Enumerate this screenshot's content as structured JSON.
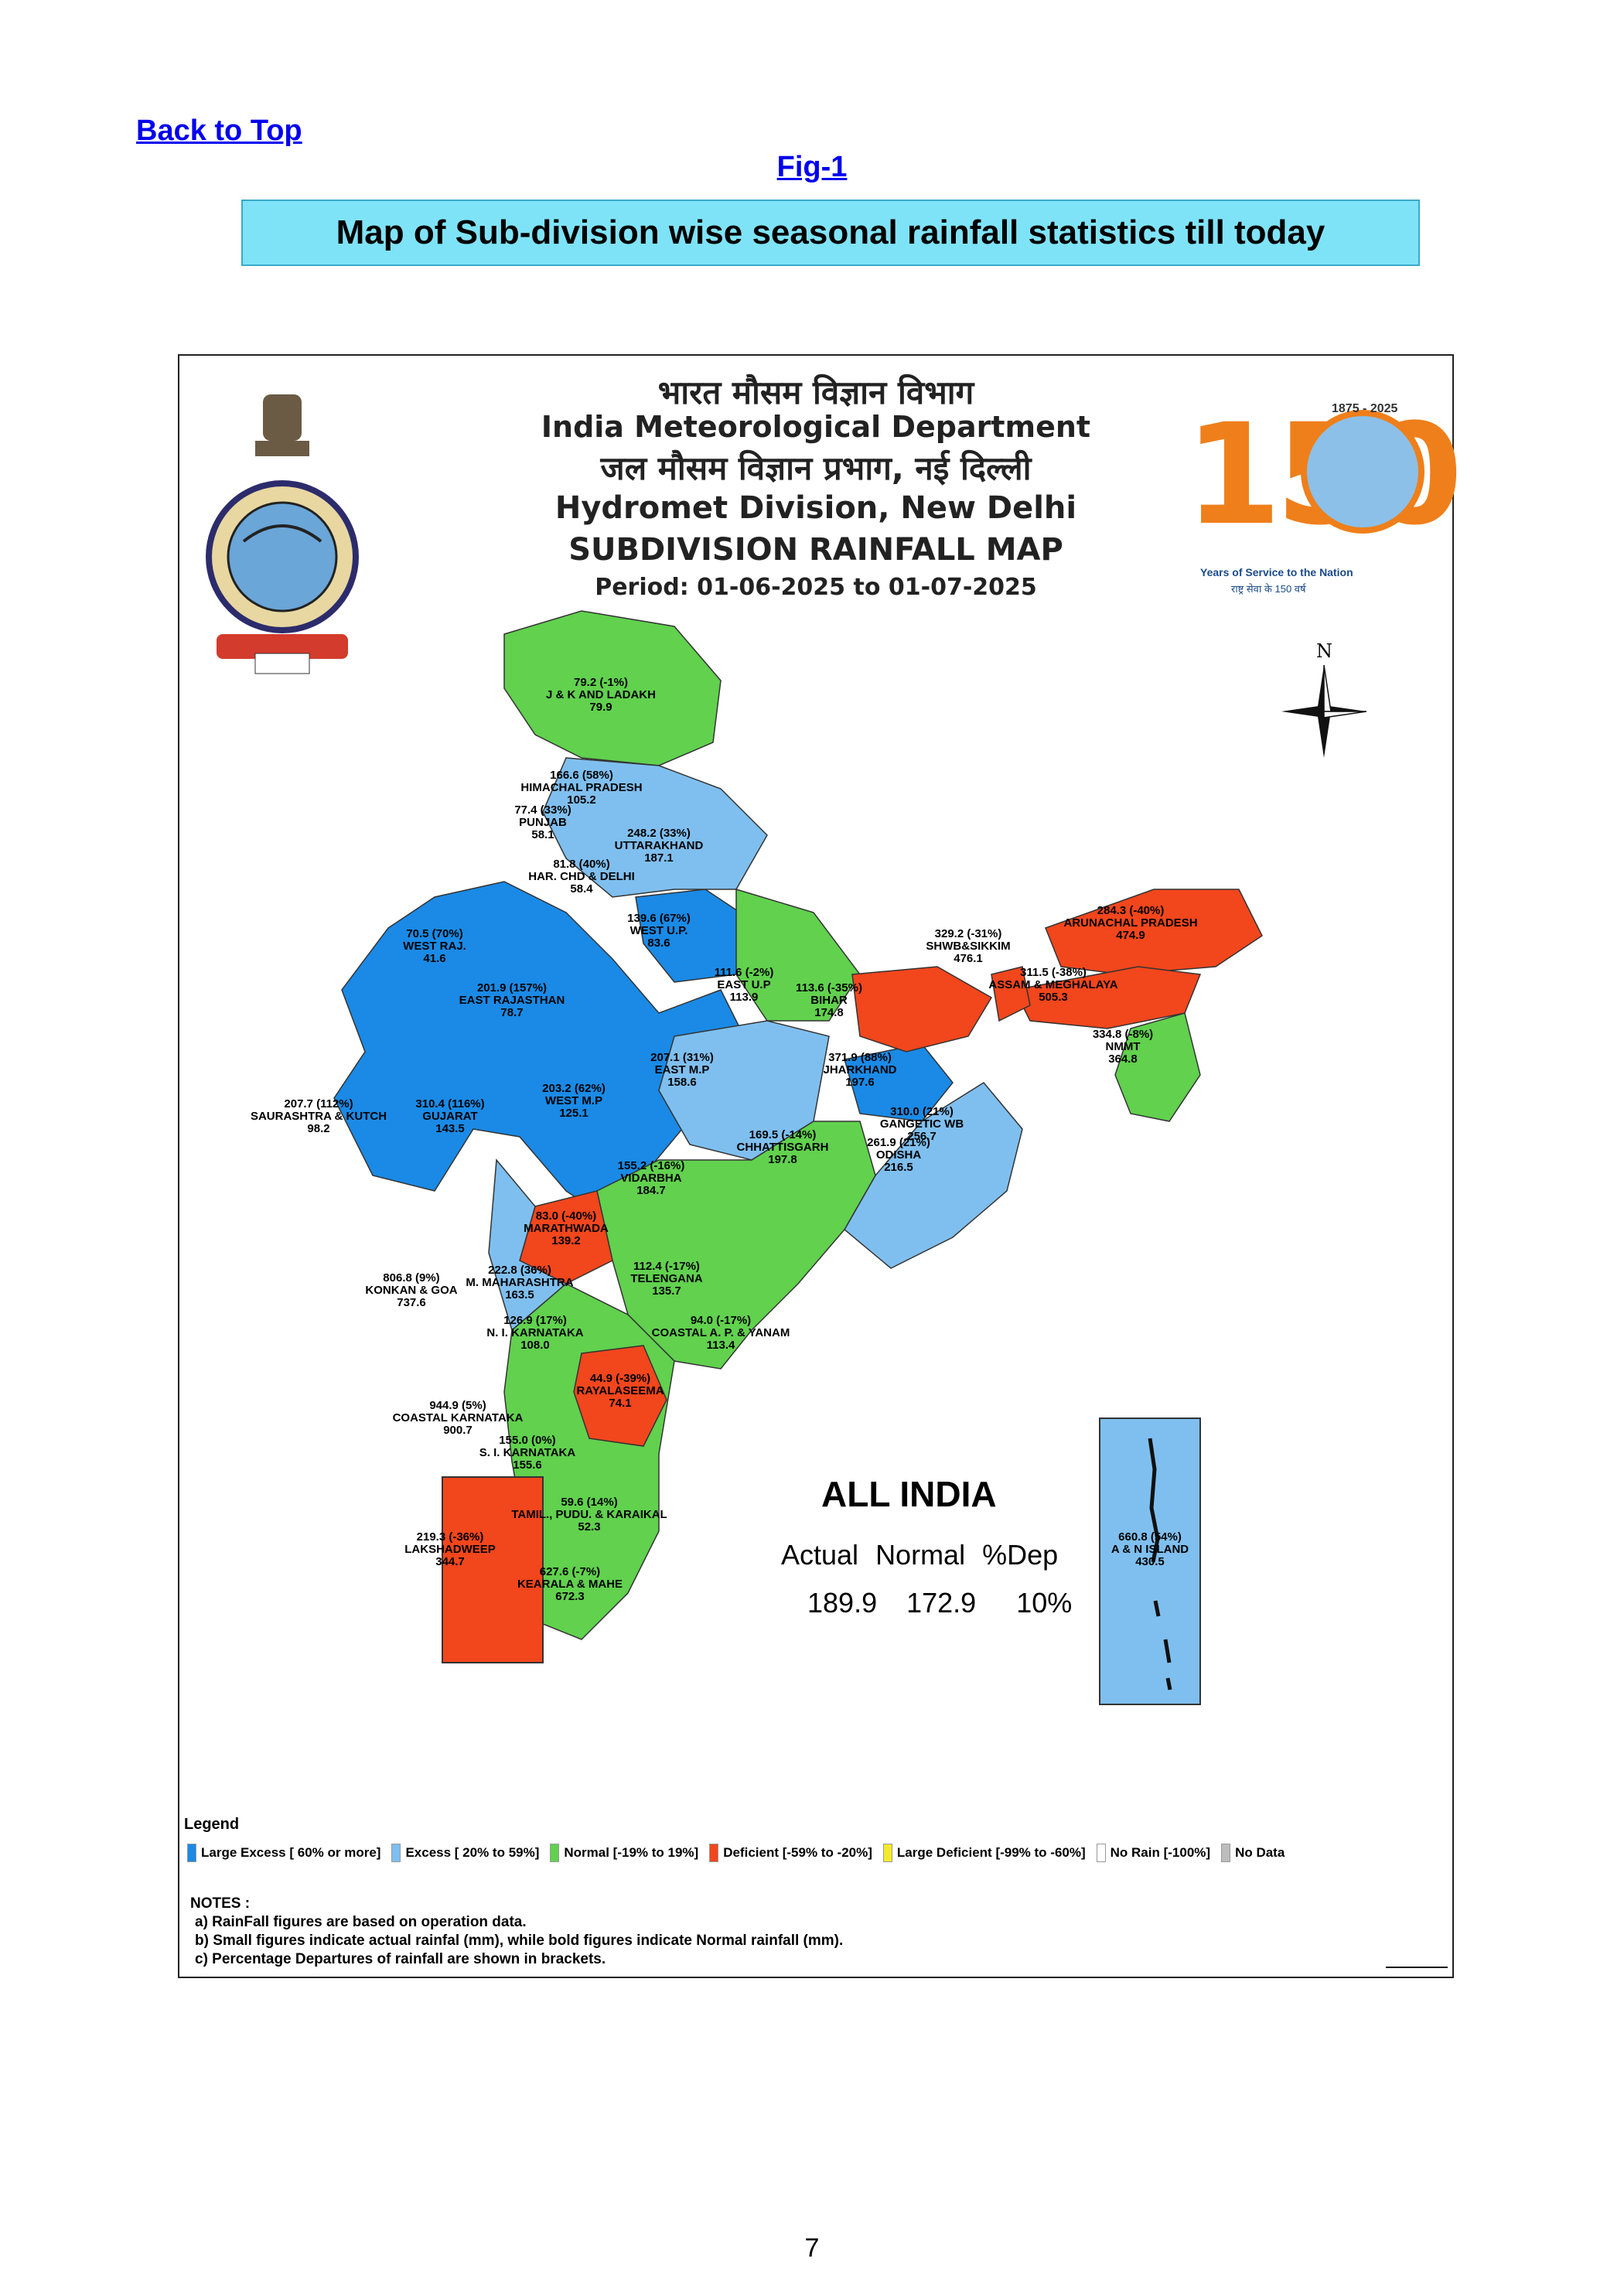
{
  "nav": {
    "back_to_top": "Back to Top",
    "fig_link": "Fig-1"
  },
  "page_title": "Map of Sub-division wise seasonal rainfall statistics till today",
  "header": {
    "line_hi_1": "भारत मौसम विज्ञान विभाग",
    "line_en_1": "India Meteorological Department",
    "line_hi_2": "जल मौसम विज्ञान प्रभाग, नई दिल्ली",
    "line_en_2": "Hydromet Division, New Delhi",
    "map_title": "SUBDIVISION RAINFALL MAP",
    "period": "Period: 01-06-2025 to 01-07-2025"
  },
  "anniversary_logo": {
    "number": "150",
    "years": "1875 - 2025",
    "caption": "Years of Service to the Nation",
    "caption_hi": "राष्ट्र सेवा के 150 वर्ष"
  },
  "north_label": "N",
  "colors": {
    "large_excess": "#1a8ae6",
    "excess": "#7fbfef",
    "normal": "#61d14e",
    "deficient": "#f2461c",
    "large_deficient": "#f5ea2a",
    "no_rain": "#ffffff",
    "no_data": "#bdbdbd",
    "title_box": "#7fe3f7",
    "link": "#0000ee"
  },
  "subdivisions": [
    {
      "name": "J & K AND LADAKH",
      "actual": "79.2",
      "dep": "(-1%)",
      "normal": "79.9",
      "category": "normal"
    },
    {
      "name": "HIMACHAL PRADESH",
      "actual": "166.6",
      "dep": "(58%)",
      "normal": "105.2",
      "category": "excess"
    },
    {
      "name": "PUNJAB",
      "actual": "77.4",
      "dep": "(33%)",
      "normal": "58.1",
      "category": "excess"
    },
    {
      "name": "UTTARAKHAND",
      "actual": "248.2",
      "dep": "(33%)",
      "normal": "187.1",
      "category": "excess"
    },
    {
      "name": "HAR. CHD & DELHI",
      "actual": "81.8",
      "dep": "(40%)",
      "normal": "58.4",
      "category": "excess"
    },
    {
      "name": "WEST U.P.",
      "actual": "139.6",
      "dep": "(67%)",
      "normal": "83.6",
      "category": "large_excess"
    },
    {
      "name": "WEST RAJ.",
      "actual": "70.5",
      "dep": "(70%)",
      "normal": "41.6",
      "category": "large_excess"
    },
    {
      "name": "EAST RAJASTHAN",
      "actual": "201.9",
      "dep": "(157%)",
      "normal": "78.7",
      "category": "large_excess"
    },
    {
      "name": "EAST U.P",
      "actual": "111.6",
      "dep": "(-2%)",
      "normal": "113.9",
      "category": "normal"
    },
    {
      "name": "BIHAR",
      "actual": "113.6",
      "dep": "(-35%)",
      "normal": "174.8",
      "category": "deficient"
    },
    {
      "name": "SHWB&SIKKIM",
      "actual": "329.2",
      "dep": "(-31%)",
      "normal": "476.1",
      "category": "deficient"
    },
    {
      "name": "ARUNACHAL PRADESH",
      "actual": "284.3",
      "dep": "(-40%)",
      "normal": "474.9",
      "category": "deficient"
    },
    {
      "name": "ASSAM & MEGHALAYA",
      "actual": "311.5",
      "dep": "(-38%)",
      "normal": "505.3",
      "category": "deficient"
    },
    {
      "name": "NMMT",
      "actual": "334.8",
      "dep": "(-8%)",
      "normal": "364.8",
      "category": "normal"
    },
    {
      "name": "EAST M.P",
      "actual": "207.1",
      "dep": "(31%)",
      "normal": "158.6",
      "category": "excess"
    },
    {
      "name": "JHARKHAND",
      "actual": "371.9",
      "dep": "(88%)",
      "normal": "197.6",
      "category": "large_excess"
    },
    {
      "name": "WEST M.P",
      "actual": "203.2",
      "dep": "(62%)",
      "normal": "125.1",
      "category": "large_excess"
    },
    {
      "name": "GANGETIC WB",
      "actual": "310.0",
      "dep": "(21%)",
      "normal": "256.7",
      "category": "excess"
    },
    {
      "name": "SAURASHTRA & KUTCH",
      "actual": "207.7",
      "dep": "(112%)",
      "normal": "98.2",
      "category": "large_excess"
    },
    {
      "name": "GUJARAT",
      "actual": "310.4",
      "dep": "(116%)",
      "normal": "143.5",
      "category": "large_excess"
    },
    {
      "name": "CHHATTISGARH",
      "actual": "169.5",
      "dep": "(-14%)",
      "normal": "197.8",
      "category": "normal"
    },
    {
      "name": "ODISHA",
      "actual": "261.9",
      "dep": "(21%)",
      "normal": "216.5",
      "category": "excess"
    },
    {
      "name": "VIDARBHA",
      "actual": "155.2",
      "dep": "(-16%)",
      "normal": "184.7",
      "category": "normal"
    },
    {
      "name": "MARATHWADA",
      "actual": "83.0",
      "dep": "(-40%)",
      "normal": "139.2",
      "category": "deficient"
    },
    {
      "name": "M. MAHARASHTRA",
      "actual": "222.8",
      "dep": "(36%)",
      "normal": "163.5",
      "category": "excess"
    },
    {
      "name": "KONKAN & GOA",
      "actual": "806.8",
      "dep": "(9%)",
      "normal": "737.6",
      "category": "normal"
    },
    {
      "name": "TELENGANA",
      "actual": "112.4",
      "dep": "(-17%)",
      "normal": "135.7",
      "category": "normal"
    },
    {
      "name": "N. I. KARNATAKA",
      "actual": "126.9",
      "dep": "(17%)",
      "normal": "108.0",
      "category": "normal"
    },
    {
      "name": "COASTAL A. P. & YANAM",
      "actual": "94.0",
      "dep": "(-17%)",
      "normal": "113.4",
      "category": "normal"
    },
    {
      "name": "RAYALASEEMA",
      "actual": "44.9",
      "dep": "(-39%)",
      "normal": "74.1",
      "category": "deficient"
    },
    {
      "name": "COASTAL KARNATAKA",
      "actual": "944.9",
      "dep": "(5%)",
      "normal": "900.7",
      "category": "normal"
    },
    {
      "name": "S. I. KARNATAKA",
      "actual": "155.0",
      "dep": "(0%)",
      "normal": "155.6",
      "category": "normal"
    },
    {
      "name": "TAMIL., PUDU. & KARAIKAL",
      "actual": "59.6",
      "dep": "(14%)",
      "normal": "52.3",
      "category": "normal"
    },
    {
      "name": "KEARALA & MAHE",
      "actual": "627.6",
      "dep": "(-7%)",
      "normal": "672.3",
      "category": "normal"
    },
    {
      "name": "LAKSHADWEEP",
      "actual": "219.3",
      "dep": "(-36%)",
      "normal": "344.7",
      "category": "deficient"
    },
    {
      "name": "A & N ISLAND",
      "actual": "660.8",
      "dep": "(54%)",
      "normal": "430.5",
      "category": "excess"
    }
  ],
  "all_india": {
    "title": "ALL INDIA",
    "headers": [
      "Actual",
      "Normal",
      "%Dep"
    ],
    "values": [
      "189.9",
      "172.9",
      "10%"
    ]
  },
  "legend": {
    "title": "Legend",
    "items": [
      {
        "label": "Large Excess [ 60% or more]",
        "category": "large_excess"
      },
      {
        "label": "Excess [ 20% to 59%]",
        "category": "excess"
      },
      {
        "label": "Normal [-19% to 19%]",
        "category": "normal"
      },
      {
        "label": "Deficient [-59% to -20%]",
        "category": "deficient"
      },
      {
        "label": "Large Deficient [-99% to -60%]",
        "category": "large_deficient"
      },
      {
        "label": "No Rain  [-100%]",
        "category": "no_rain"
      },
      {
        "label": "No Data",
        "category": "no_data"
      }
    ]
  },
  "notes": {
    "title": "NOTES :",
    "items": [
      "a) RainFall figures are based on operation data.",
      "b) Small figures indicate actual rainfal (mm), while bold figures indicate Normal rainfall (mm).",
      "c) Percentage Departures of rainfall are shown in brackets."
    ]
  },
  "page_number": "7"
}
